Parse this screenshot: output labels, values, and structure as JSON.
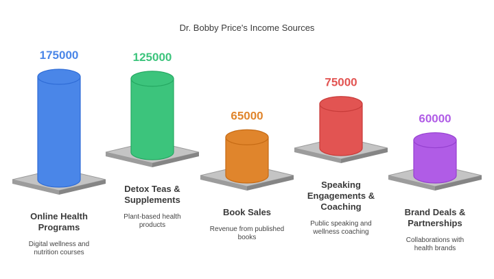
{
  "chart_data": {
    "type": "bar",
    "title": "Dr. Bobby Price's Income Sources",
    "categories": [
      "Online Health Programs",
      "Detox Teas & Supplements",
      "Book Sales",
      "Speaking Engagements & Coaching",
      "Brand Deals & Partnerships"
    ],
    "values": [
      175000,
      125000,
      65000,
      75000,
      60000
    ],
    "value_labels": [
      "175000",
      "125000",
      "65000",
      "75000",
      "60000"
    ],
    "category_lines": [
      [
        "Online Health",
        "Programs"
      ],
      [
        "Detox Teas &",
        "Supplements"
      ],
      [
        "Book Sales"
      ],
      [
        "Speaking",
        "Engagements &",
        "Coaching"
      ],
      [
        "Brand Deals &",
        "Partnerships"
      ]
    ],
    "descriptions": [
      [
        "Digital wellness and",
        "nutrition courses"
      ],
      [
        "Plant-based health",
        "products"
      ],
      [
        "Revenue from published",
        "books"
      ],
      [
        "Public speaking and",
        "wellness coaching"
      ],
      [
        "Collaborations with",
        "health brands"
      ]
    ],
    "colors": [
      "#4a86e8",
      "#3cc47c",
      "#e0852c",
      "#e25452",
      "#b05ce6"
    ],
    "dark_colors": [
      "#2f6cd6",
      "#25a862",
      "#c56a14",
      "#c73b39",
      "#9540cf"
    ],
    "value_colors": [
      "#4a86e8",
      "#3cc47c",
      "#e0852c",
      "#e25452",
      "#b05ce6"
    ]
  }
}
